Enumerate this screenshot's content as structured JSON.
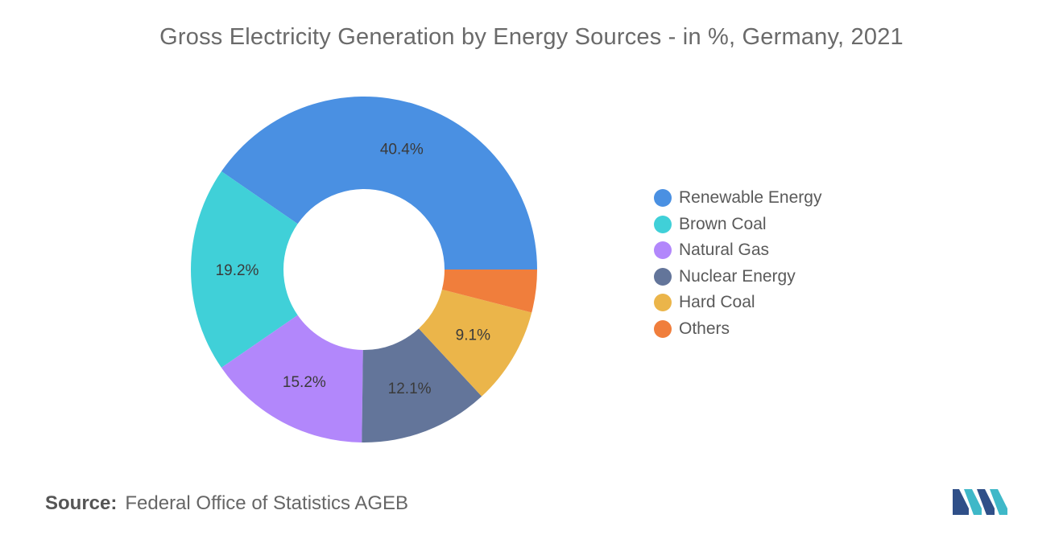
{
  "chart_data": {
    "type": "pie",
    "title": "Gross Electricity Generation by Energy Sources - in %, Germany, 2021",
    "categories": [
      "Renewable Energy",
      "Brown Coal",
      "Natural Gas",
      "Nuclear Energy",
      "Hard Coal",
      "Others"
    ],
    "values": [
      40.4,
      19.2,
      15.2,
      12.1,
      9.1,
      4.0
    ],
    "data_labels": [
      "40.4%",
      "19.2%",
      "15.2%",
      "12.1%",
      "9.1%",
      ""
    ],
    "colors": [
      "#4a90e2",
      "#40d0d8",
      "#b287fb",
      "#63759a",
      "#ebb54a",
      "#f07e3c"
    ],
    "legend_position": "right",
    "donut": true
  },
  "source": {
    "label": "Source:",
    "text": "Federal Office of Statistics AGEB"
  },
  "logo": {
    "icon": "mordor-intelligence-logo-icon",
    "colors": [
      "#2f4f88",
      "#3fb8c8"
    ]
  }
}
